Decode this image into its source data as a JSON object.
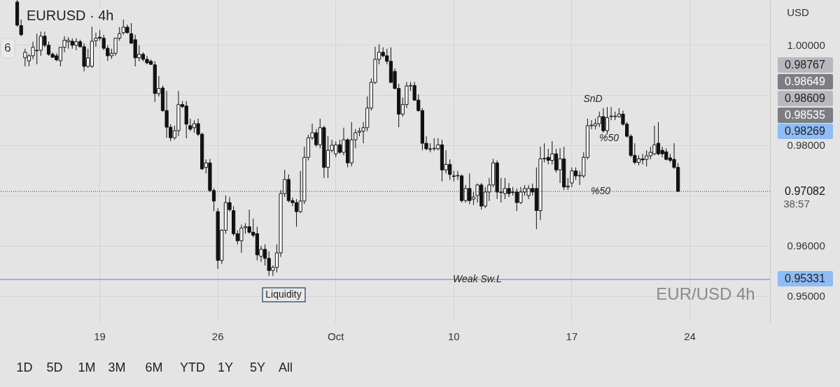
{
  "chart_data": {
    "type": "candlestick",
    "title": "EURUSD · 4h",
    "categories": [
      null,
      null,
      null,
      null,
      null,
      null,
      null,
      null,
      null,
      null,
      null,
      null,
      null,
      null,
      null,
      null,
      null,
      null,
      null,
      null,
      null,
      null,
      null,
      null,
      null,
      "19",
      null,
      null,
      null,
      null,
      null,
      null,
      null,
      null,
      null,
      null,
      null,
      null,
      null,
      null,
      null,
      null,
      null,
      null,
      null,
      null,
      null,
      null,
      null,
      null,
      null,
      null,
      null,
      null,
      null,
      "26",
      null,
      null,
      null,
      null,
      null,
      null,
      null,
      null,
      null,
      null,
      null,
      null,
      null,
      null,
      null,
      null,
      null,
      null,
      null,
      null,
      null,
      null,
      null,
      null,
      null,
      null,
      null,
      null,
      null,
      "Oct",
      null,
      null,
      null,
      null,
      null,
      null,
      null,
      null,
      null,
      null,
      null,
      null,
      null,
      null,
      null,
      null,
      null,
      null,
      null,
      null,
      null,
      null,
      null,
      null,
      null,
      null,
      null,
      null,
      null,
      "10",
      null,
      null,
      null,
      null,
      null,
      null,
      null,
      null,
      null,
      null,
      null,
      null,
      null,
      null,
      null,
      null,
      null,
      null,
      null,
      null,
      null,
      null,
      null,
      null,
      null,
      null,
      null,
      null,
      null,
      "17",
      null,
      null,
      null,
      null,
      null,
      null,
      null,
      null,
      null,
      null,
      null,
      null,
      null,
      null,
      null,
      null,
      null,
      null,
      null,
      null,
      null,
      null,
      null,
      null,
      null,
      null,
      null,
      null,
      null,
      "24",
      null,
      null,
      null,
      null,
      null,
      null,
      null,
      null,
      null,
      null,
      null,
      null,
      null,
      null,
      null,
      null,
      null,
      null,
      null,
      null
    ],
    "ohlc": [
      null,
      null,
      null,
      null,
      [
        1.0085,
        1.0089,
        1.0036,
        1.0039
      ],
      [
        1.0038,
        1.005,
        1.0017,
        1.002
      ],
      [
        0.9974,
        0.9992,
        0.9957,
        0.9985
      ],
      [
        0.9968,
        0.9981,
        0.9957,
        0.9978
      ],
      [
        0.9978,
        1.0006,
        0.9971,
        0.9995
      ],
      [
        0.9988,
        1.0022,
        0.9961,
        0.9989
      ],
      [
        0.9989,
        1.0026,
        0.9978,
        1.0017
      ],
      [
        1.0017,
        1.0026,
        0.9995,
        0.9999
      ],
      [
        0.9999,
        1.0006,
        0.9978,
        0.9981
      ],
      [
        0.9981,
        0.9985,
        0.9974,
        0.9975
      ],
      [
        0.9978,
        0.9983,
        0.9967,
        0.997
      ],
      [
        0.9968,
        0.9995,
        0.9957,
        0.9995
      ],
      [
        0.9995,
        1.0017,
        0.9985,
        1.0009
      ],
      [
        1.0006,
        1.0015,
        0.9992,
        1.0009
      ],
      [
        1.0007,
        1.0013,
        0.9992,
        0.9999
      ],
      [
        0.9999,
        1.0013,
        0.9989,
        1.0006
      ],
      [
        1.0006,
        1.001,
        0.9995,
        0.9996
      ],
      [
        0.9996,
        1.0003,
        0.9947,
        0.9957
      ],
      [
        0.9957,
        0.9992,
        0.9954,
        0.9974
      ],
      [
        0.9957,
        1.0036,
        0.9954,
        1.0007
      ],
      [
        1.0008,
        1.0024,
        0.9996,
        1.0013
      ],
      [
        1.0015,
        1.0029,
        1.0008,
        1.0013
      ],
      [
        1.0013,
        1.002,
        0.9989,
        0.9993
      ],
      [
        0.9993,
        0.9999,
        0.9968,
        0.9978
      ],
      [
        0.9978,
        0.9992,
        0.9972,
        0.9983
      ],
      [
        0.9983,
        1.0013,
        0.9978,
        1.0013
      ],
      [
        1.0013,
        1.0035,
        1.0008,
        1.0022
      ],
      [
        1.0024,
        1.005,
        1.002,
        1.0035
      ],
      [
        1.0035,
        1.004,
        1.0022,
        1.0024
      ],
      [
        1.0022,
        1.0043,
        1.0002,
        1.0003
      ],
      [
        1.001,
        1.002,
        0.9957,
        0.9974
      ],
      [
        0.9974,
        0.9999,
        0.9967,
        0.9981
      ],
      [
        0.9981,
        0.9985,
        0.9967,
        0.9971
      ],
      [
        0.9971,
        0.9978,
        0.9961,
        0.9964
      ],
      [
        0.9967,
        0.9971,
        0.996,
        0.9961
      ],
      [
        0.996,
        0.9967,
        0.9886,
        0.9903
      ],
      [
        0.9903,
        0.9938,
        0.9897,
        0.9913
      ],
      [
        0.9914,
        0.9919,
        0.9867,
        0.9869
      ],
      [
        0.9869,
        0.9908,
        0.9815,
        0.9836
      ],
      [
        0.9836,
        0.9842,
        0.9808,
        0.9815
      ],
      [
        0.9815,
        0.9839,
        0.9811,
        0.9829
      ],
      [
        0.9829,
        0.9908,
        0.9818,
        0.9881
      ],
      [
        0.9881,
        0.9888,
        0.9874,
        0.9877
      ],
      [
        0.9878,
        0.9888,
        0.9814,
        0.9842
      ],
      [
        0.9839,
        0.9853,
        0.9828,
        0.9832
      ],
      [
        0.9835,
        0.985,
        0.9825,
        0.9843
      ],
      [
        0.9843,
        0.9853,
        0.9818,
        0.9822
      ],
      [
        0.9822,
        0.9825,
        0.9751,
        0.9753
      ],
      [
        0.9756,
        0.9772,
        0.9744,
        0.9765
      ],
      [
        0.9765,
        0.9773,
        0.9707,
        0.971
      ],
      [
        0.971,
        0.9714,
        0.9669,
        0.9689
      ],
      [
        0.9668,
        0.9675,
        0.9554,
        0.9571
      ],
      [
        0.9571,
        0.9633,
        0.9564,
        0.9631
      ],
      [
        0.9631,
        0.97,
        0.9624,
        0.9686
      ],
      [
        0.9686,
        0.9697,
        0.9668,
        0.9672
      ],
      [
        0.967,
        0.9679,
        0.962,
        0.9624
      ],
      [
        0.9624,
        0.9631,
        0.9603,
        0.961
      ],
      [
        0.961,
        0.9642,
        0.9586,
        0.9635
      ],
      [
        0.9636,
        0.9645,
        0.9624,
        0.9638
      ],
      [
        0.9638,
        0.9672,
        0.9624,
        0.9627
      ],
      [
        0.9627,
        0.9654,
        0.9617,
        0.9621
      ],
      [
        0.9624,
        0.9638,
        0.9571,
        0.9582
      ],
      [
        0.9579,
        0.96,
        0.9568,
        0.9593
      ],
      [
        0.9593,
        0.9603,
        0.9561,
        0.9575
      ],
      [
        0.9575,
        0.9589,
        0.954,
        0.9551
      ],
      [
        0.9551,
        0.9561,
        0.954,
        0.9557
      ],
      [
        0.9557,
        0.9603,
        0.9547,
        0.9586
      ],
      [
        0.9586,
        0.9711,
        0.9578,
        0.9704
      ],
      [
        0.9704,
        0.9751,
        0.9697,
        0.9732
      ],
      [
        0.9732,
        0.9742,
        0.9686,
        0.969
      ],
      [
        0.969,
        0.9696,
        0.9679,
        0.9686
      ],
      [
        0.9686,
        0.9693,
        0.9638,
        0.9668
      ],
      [
        0.9668,
        0.9749,
        0.9665,
        0.9689
      ],
      [
        0.9689,
        0.9797,
        0.9683,
        0.9776
      ],
      [
        0.9776,
        0.9821,
        0.977,
        0.9815
      ],
      [
        0.9815,
        0.9843,
        0.9811,
        0.9825
      ],
      [
        0.9825,
        0.9832,
        0.9797,
        0.9801
      ],
      [
        0.9801,
        0.9853,
        0.9794,
        0.9835
      ],
      [
        0.9835,
        0.9839,
        0.9735,
        0.9756
      ],
      [
        0.9756,
        0.9818,
        0.9735,
        0.979
      ],
      [
        0.979,
        0.9811,
        0.9786,
        0.98
      ],
      [
        0.9783,
        0.9808,
        0.9776,
        0.9801
      ],
      [
        0.9801,
        0.9811,
        0.9783,
        0.9786
      ],
      [
        0.9786,
        0.9835,
        0.978,
        0.9811
      ],
      [
        0.9811,
        0.9814,
        0.9756,
        0.9765
      ],
      [
        0.9765,
        0.9846,
        0.9758,
        0.9811
      ],
      [
        0.9811,
        0.9832,
        0.9794,
        0.9825
      ],
      [
        0.9826,
        0.9835,
        0.9818,
        0.9828
      ],
      [
        0.9828,
        0.9846,
        0.9804,
        0.9835
      ],
      [
        0.9835,
        0.9897,
        0.9828,
        0.9874
      ],
      [
        0.9874,
        0.9933,
        0.9869,
        0.9925
      ],
      [
        0.9925,
        0.9996,
        0.9922,
        0.9971
      ],
      [
        0.9971,
        1.0001,
        0.9961,
        0.9985
      ],
      [
        0.9985,
        0.9995,
        0.9975,
        0.9978
      ],
      [
        0.9978,
        0.9992,
        0.9961,
        0.9967
      ],
      [
        0.9967,
        0.9995,
        0.9925,
        0.9925
      ],
      [
        0.9947,
        0.9953,
        0.9911,
        0.9913
      ],
      [
        0.9913,
        0.9922,
        0.9836,
        0.9862
      ],
      [
        0.9862,
        0.9895,
        0.9857,
        0.9881
      ],
      [
        0.9881,
        0.9926,
        0.9874,
        0.9918
      ],
      [
        0.9918,
        0.9926,
        0.9908,
        0.9919
      ],
      [
        0.9919,
        0.9926,
        0.9888,
        0.989
      ],
      [
        0.989,
        0.9901,
        0.9867,
        0.9869
      ],
      [
        0.9869,
        0.9874,
        0.979,
        0.9804
      ],
      [
        0.9804,
        0.9818,
        0.979,
        0.9793
      ],
      [
        0.9793,
        0.9804,
        0.9786,
        0.9792
      ],
      [
        0.9793,
        0.9814,
        0.9789,
        0.9794
      ],
      [
        0.9793,
        0.9814,
        0.979,
        0.9801
      ],
      [
        0.9801,
        0.9811,
        0.9728,
        0.9751
      ],
      [
        0.9751,
        0.979,
        0.9744,
        0.9762
      ],
      [
        0.9762,
        0.9772,
        0.9731,
        0.9742
      ],
      [
        0.9739,
        0.9749,
        0.9728,
        0.9738
      ],
      [
        0.9739,
        0.9749,
        0.9731,
        0.974
      ],
      [
        0.9739,
        0.9742,
        0.9686,
        0.969
      ],
      [
        0.969,
        0.9721,
        0.9686,
        0.9714
      ],
      [
        0.9714,
        0.9744,
        0.9683,
        0.969
      ],
      [
        0.9693,
        0.9707,
        0.9681,
        0.9697
      ],
      [
        0.97,
        0.9724,
        0.9686,
        0.9721
      ],
      [
        0.9721,
        0.9725,
        0.9672,
        0.9679
      ],
      [
        0.9679,
        0.9717,
        0.9675,
        0.9707
      ],
      [
        0.9707,
        0.9735,
        0.9689,
        0.9721
      ],
      [
        0.9721,
        0.9773,
        0.9717,
        0.9765
      ],
      [
        0.9765,
        0.977,
        0.9693,
        0.9707
      ],
      [
        0.9707,
        0.9735,
        0.9686,
        0.9706
      ],
      [
        0.9704,
        0.9735,
        0.9693,
        0.9714
      ],
      [
        0.9714,
        0.9725,
        0.9697,
        0.9704
      ],
      [
        0.9707,
        0.9717,
        0.97,
        0.9706
      ],
      [
        0.9707,
        0.9714,
        0.9669,
        0.9686
      ],
      [
        0.9686,
        0.9717,
        0.9683,
        0.9707
      ],
      [
        0.9707,
        0.9721,
        0.97,
        0.9714
      ],
      [
        0.97,
        0.9721,
        0.9693,
        0.9714
      ],
      [
        0.9714,
        0.9724,
        0.97,
        0.9707
      ],
      [
        0.9714,
        0.9756,
        0.9633,
        0.967
      ],
      [
        0.967,
        0.9797,
        0.9651,
        0.9773
      ],
      [
        0.9773,
        0.9804,
        0.9766,
        0.9774
      ],
      [
        0.9776,
        0.9793,
        0.9762,
        0.977
      ],
      [
        0.977,
        0.9808,
        0.9762,
        0.9783
      ],
      [
        0.9783,
        0.9793,
        0.9746,
        0.9751
      ],
      [
        0.9751,
        0.9794,
        0.9725,
        0.9773
      ],
      [
        0.9773,
        0.9797,
        0.9711,
        0.9717
      ],
      [
        0.9717,
        0.9735,
        0.9711,
        0.9719
      ],
      [
        0.9725,
        0.9756,
        0.9717,
        0.9749
      ],
      [
        0.9749,
        0.9756,
        0.9731,
        0.9739
      ],
      [
        0.9739,
        0.9749,
        0.9721,
        0.974
      ],
      [
        0.9739,
        0.9786,
        0.9735,
        0.9776
      ],
      [
        0.9776,
        0.9853,
        0.9772,
        0.9839
      ],
      [
        0.9839,
        0.985,
        0.9832,
        0.984
      ],
      [
        0.9839,
        0.9853,
        0.9832,
        0.9843
      ],
      [
        0.9843,
        0.9867,
        0.9836,
        0.9857
      ],
      [
        0.9857,
        0.9874,
        0.9825,
        0.9829
      ],
      [
        0.9829,
        0.9876,
        0.9822,
        0.9855
      ],
      [
        0.9857,
        0.9876,
        0.985,
        0.9858
      ],
      [
        0.9857,
        0.9867,
        0.985,
        0.9858
      ],
      [
        0.9857,
        0.9874,
        0.9855,
        0.9862
      ],
      [
        0.9862,
        0.9869,
        0.9839,
        0.9842
      ],
      [
        0.9842,
        0.9846,
        0.9815,
        0.9818
      ],
      [
        0.9818,
        0.9822,
        0.9776,
        0.978
      ],
      [
        0.978,
        0.9804,
        0.9762,
        0.9766
      ],
      [
        0.9766,
        0.978,
        0.976,
        0.9773
      ],
      [
        0.9773,
        0.9783,
        0.9762,
        0.9771
      ],
      [
        0.9772,
        0.979,
        0.9758,
        0.9779
      ],
      [
        0.9779,
        0.9797,
        0.9772,
        0.9786
      ],
      [
        0.9783,
        0.9839,
        0.978,
        0.9801
      ],
      [
        0.9804,
        0.9846,
        0.978,
        0.9783
      ],
      [
        0.979,
        0.9797,
        0.9776,
        0.9783
      ],
      [
        0.9787,
        0.9794,
        0.977,
        0.9772
      ],
      [
        0.9775,
        0.9783,
        0.9766,
        0.977
      ],
      [
        0.9772,
        0.9804,
        0.9753,
        0.9756
      ],
      [
        0.9756,
        0.9765,
        0.97082,
        0.97082
      ],
      null,
      null,
      null,
      null,
      null,
      null,
      null,
      null,
      null,
      null,
      null,
      null,
      null,
      null,
      null,
      null,
      null,
      null,
      null,
      null,
      null,
      null,
      null
    ],
    "ylim": [
      0.9447,
      1.0089
    ],
    "yticks": [
      {
        "value": 0.95,
        "label": "0.95000"
      },
      {
        "value": 0.96,
        "label": "0.96000"
      },
      {
        "value": 0.97,
        "label": null
      },
      {
        "value": 0.98,
        "label": "0.98000"
      },
      {
        "value": 0.99,
        "label": null
      },
      {
        "value": 1.0,
        "label": "1.00000"
      }
    ],
    "grid": true,
    "ref_lines": [
      {
        "axis": "y",
        "value": 0.97082,
        "label": "0.97082",
        "color": "#333333",
        "line_style": "dotted"
      },
      {
        "axis": "y",
        "value": 0.95331,
        "label": "Weak Sw.L",
        "color": "#5b7fd6",
        "line_style": "solid"
      }
    ],
    "annotations": [
      "SnD",
      "%50",
      "%50",
      "Liquidity",
      "EUR/USD 4h",
      "6",
      "USD",
      "0.98767",
      "0.98649",
      "0.98609",
      "0.98535",
      "0.98269",
      "38:57",
      "0.95331",
      "1D",
      "5D",
      "1M",
      "3M",
      "6M",
      "YTD",
      "1Y",
      "5Y",
      "All"
    ]
  }
}
